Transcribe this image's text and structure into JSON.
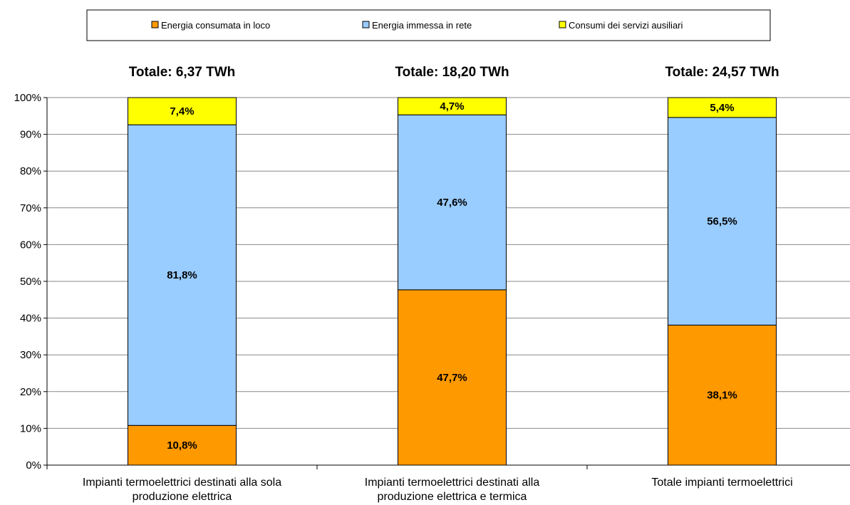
{
  "chart_data": {
    "type": "bar",
    "stacked": true,
    "categories": [
      [
        "Impianti termoelettrici destinati alla sola",
        "produzione elettrica"
      ],
      [
        "Impianti termoelettrici destinati alla",
        "produzione elettrica e termica"
      ],
      [
        "Totale impianti termoelettrici"
      ]
    ],
    "totals": [
      "Totale: 6,37 TWh",
      "Totale: 18,20 TWh",
      "Totale: 24,57 TWh"
    ],
    "series": [
      {
        "name": "Energia consumata in loco",
        "color": "#FF9900",
        "values": [
          10.8,
          47.7,
          38.1
        ],
        "labels": [
          "10,8%",
          "47,7%",
          "38,1%"
        ]
      },
      {
        "name": "Energia immessa in rete",
        "color": "#99CCFF",
        "values": [
          81.8,
          47.6,
          56.5
        ],
        "labels": [
          "81,8%",
          "47,6%",
          "56,5%"
        ]
      },
      {
        "name": "Consumi dei servizi ausiliari",
        "color": "#FFFF00",
        "values": [
          7.4,
          4.7,
          5.4
        ],
        "labels": [
          "7,4%",
          "4,7%",
          "5,4%"
        ]
      }
    ],
    "yticks": [
      "0%",
      "10%",
      "20%",
      "30%",
      "40%",
      "50%",
      "60%",
      "70%",
      "80%",
      "90%",
      "100%"
    ],
    "ylim": [
      0,
      100
    ],
    "grid": true,
    "legend": "top"
  }
}
